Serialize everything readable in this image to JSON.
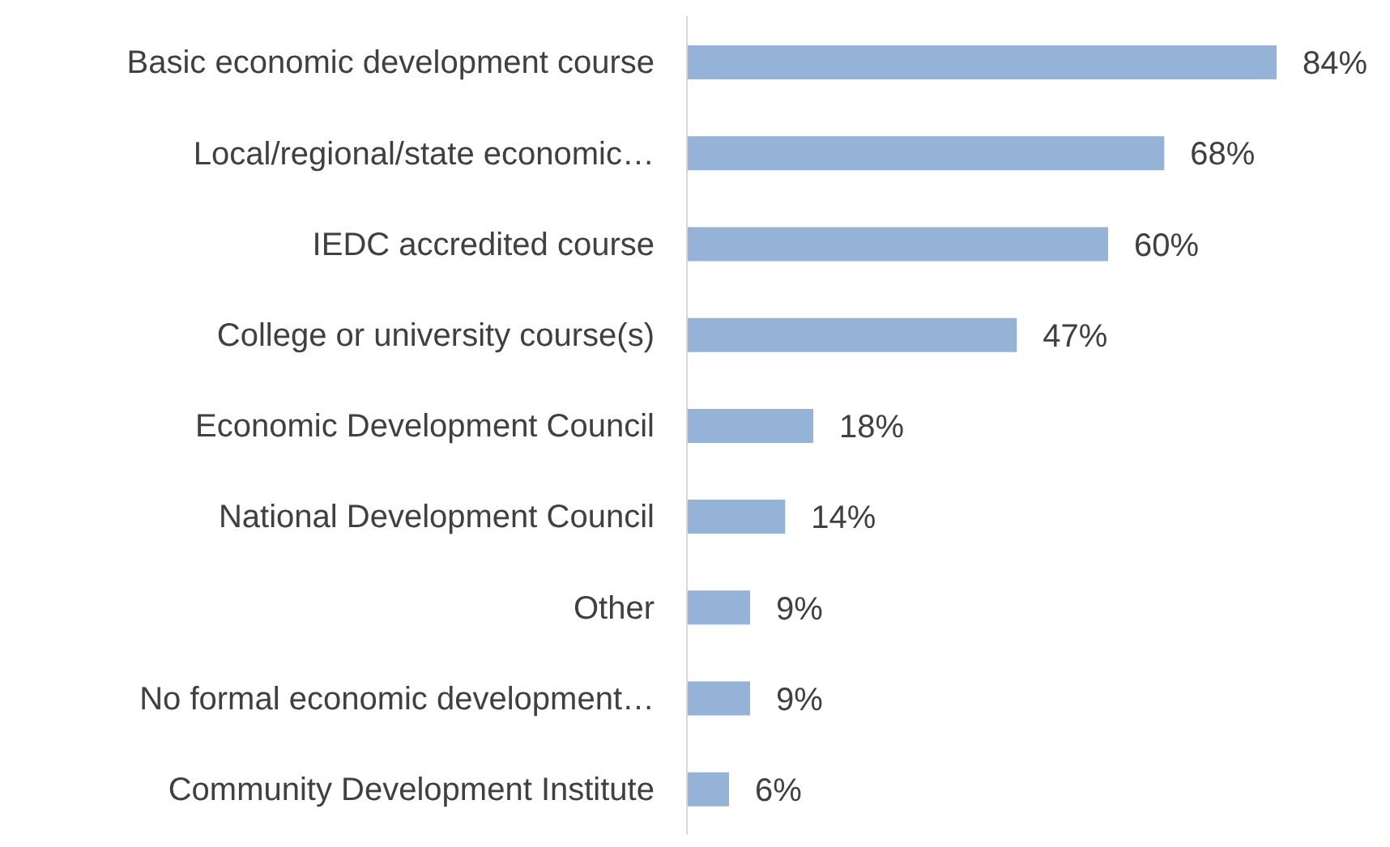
{
  "chart_data": {
    "type": "bar",
    "orientation": "horizontal",
    "categories": [
      "Basic economic development course",
      "Local/regional/state economic…",
      "IEDC accredited course",
      "College or university course(s)",
      "Economic Development Council",
      "National Development Council",
      "Other",
      "No formal economic development…",
      "Community Development Institute"
    ],
    "values": [
      84,
      68,
      60,
      47,
      18,
      14,
      9,
      9,
      6
    ],
    "color": "#95b3d7",
    "data_labels": true,
    "value_labels": [
      "84%",
      "68%",
      "60%",
      "47%",
      "18%",
      "14%",
      "9%",
      "9%",
      "6%"
    ]
  }
}
